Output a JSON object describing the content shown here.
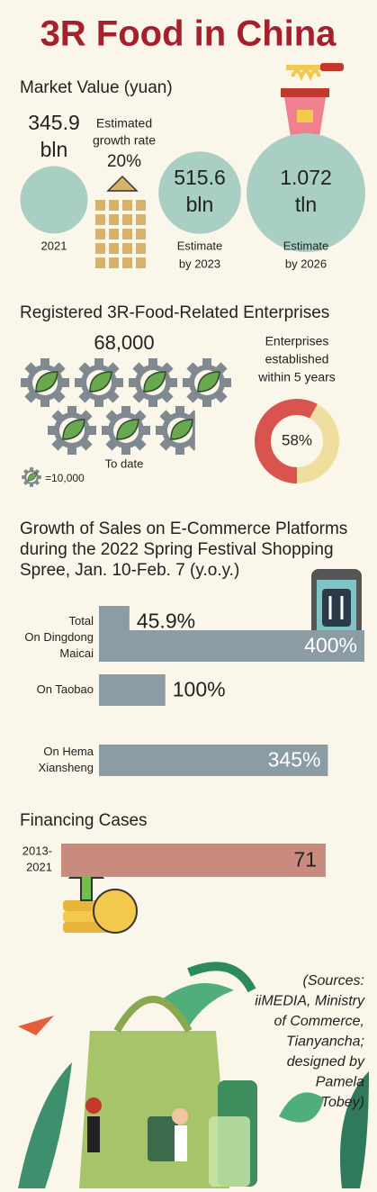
{
  "title": "3R Food in China",
  "market_value": {
    "heading": "Market Value (yuan)",
    "items": [
      {
        "value": 345.9,
        "value_label": [
          "345.9",
          "bln"
        ],
        "caption": [
          "2021"
        ]
      },
      {
        "value": 515.6,
        "value_label": [
          "515.6",
          "bln"
        ],
        "caption": [
          "Estimate",
          "by 2023"
        ]
      },
      {
        "value": 1072,
        "value_label": [
          "1.072",
          "tln"
        ],
        "caption": [
          "Estimate",
          "by 2026"
        ]
      }
    ],
    "growth": {
      "label": [
        "Estimated",
        "growth rate"
      ],
      "value": 20,
      "value_label": "20%"
    }
  },
  "enterprises": {
    "heading": "Registered 3R-Food-Related Enterprises",
    "total": 68000,
    "total_label": "68,000",
    "total_caption": "To date",
    "unit_value": 10000,
    "unit_label": "=10,000",
    "recent_label": [
      "Enterprises",
      "established",
      "within 5 years"
    ],
    "recent_share": 58,
    "recent_share_label": "58%"
  },
  "ecommerce": {
    "heading": [
      "Growth of Sales on E-Commerce Platforms",
      "during the 2022 Spring Festival Shopping",
      "Spree, Jan. 10-Feb. 7 (y.o.y.)"
    ],
    "color": "#8b9ca4",
    "bars": [
      {
        "label": [
          "Total"
        ],
        "value": 45.9,
        "value_label": "45.9%"
      },
      {
        "label": [
          "On Dingdong",
          "Maicai"
        ],
        "value": 400,
        "value_label": "400%"
      },
      {
        "label": [
          "On Taobao"
        ],
        "value": 100,
        "value_label": "100%"
      },
      {
        "label": [
          "On Hema",
          "Xiansheng"
        ],
        "value": 345,
        "value_label": "345%"
      }
    ]
  },
  "financing": {
    "heading": "Financing Cases",
    "color": "#c98b7d",
    "bars": [
      {
        "label": [
          "2013-",
          "2021"
        ],
        "value": 71
      }
    ]
  },
  "sources": [
    "(Sources:",
    "iiMEDIA, Ministry",
    "of Commerce,",
    "Tianyancha;",
    "designed by",
    "Pamela",
    "Tobey)"
  ]
}
